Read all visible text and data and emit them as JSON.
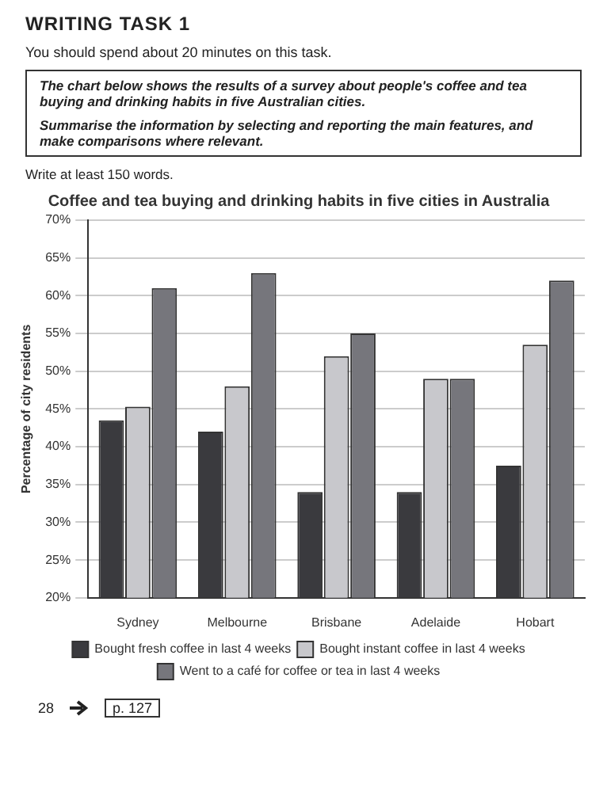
{
  "chart_data": {
    "type": "bar",
    "title": "Coffee and tea buying and drinking habits in five cities in Australia",
    "ylabel": "Percentage of city residents",
    "annotations": [
      "WRITING TASK 1",
      "You should spend about 20 minutes on this task.",
      "The chart below shows the results of a survey about people's coffee and tea buying and drinking habits in five Australian cities.",
      "Summarise the information by selecting and reporting the main features, and make comparisons where relevant.",
      "Write at least 150 words.",
      "28",
      "p. 127"
    ],
    "categories": [
      "Sydney",
      "Melbourne",
      "Brisbane",
      "Adelaide",
      "Hobart"
    ],
    "series": [
      {
        "name": "Bought fresh coffee in last 4 weeks",
        "color": "#3a3a3e",
        "values": [
          43.5,
          42,
          34,
          34,
          37.5
        ]
      },
      {
        "name": "Bought instant coffee in last 4 weeks",
        "color": "#c8c8cc",
        "values": [
          45.3,
          48,
          52,
          49,
          53.5
        ]
      },
      {
        "name": "Went to a café for coffee or tea in last 4 weeks",
        "color": "#76767c",
        "values": [
          61,
          63,
          55,
          49,
          62
        ]
      }
    ],
    "ylim": [
      20,
      70
    ],
    "yticks": [
      {
        "value": 20,
        "label": "20%"
      },
      {
        "value": 25,
        "label": "25%"
      },
      {
        "value": 30,
        "label": "30%"
      },
      {
        "value": 35,
        "label": "35%"
      },
      {
        "value": 40,
        "label": "40%"
      },
      {
        "value": 45,
        "label": "45%"
      },
      {
        "value": 50,
        "label": "50%"
      },
      {
        "value": 55,
        "label": "55%"
      },
      {
        "value": 60,
        "label": "60%"
      },
      {
        "value": 65,
        "label": "65%"
      },
      {
        "value": 70,
        "label": "70%"
      }
    ],
    "grid": "y",
    "legend": "bottom"
  }
}
